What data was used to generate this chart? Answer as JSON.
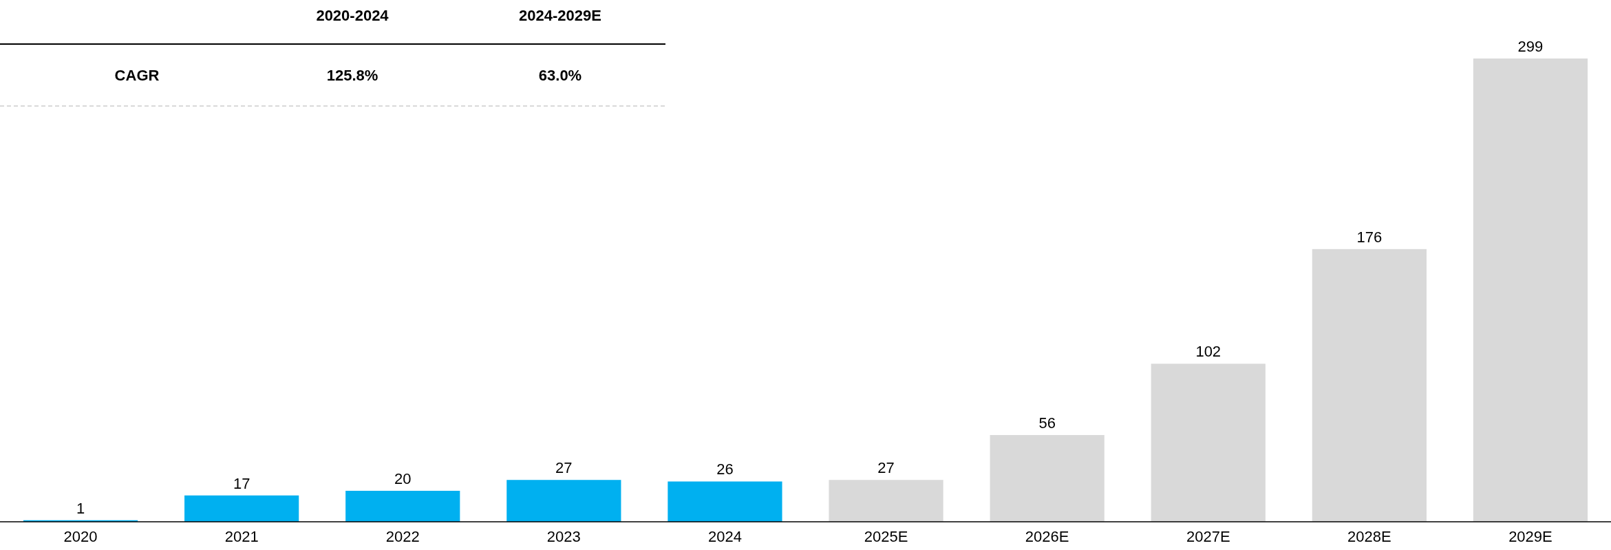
{
  "chart_data": {
    "type": "bar",
    "categories": [
      "2020",
      "2021",
      "2022",
      "2023",
      "2024",
      "2025E",
      "2026E",
      "2027E",
      "2028E",
      "2029E"
    ],
    "values": [
      1,
      17,
      20,
      27,
      26,
      27,
      56,
      102,
      176,
      299
    ],
    "colors": [
      "#00b0f0",
      "#00b0f0",
      "#00b0f0",
      "#00b0f0",
      "#00b0f0",
      "#d9d9d9",
      "#d9d9d9",
      "#d9d9d9",
      "#d9d9d9",
      "#d9d9d9"
    ],
    "data_labels": true,
    "annotations": [
      "2020-2024",
      "2024-2029E",
      "CAGR",
      "125.8%",
      "63.0%"
    ]
  }
}
